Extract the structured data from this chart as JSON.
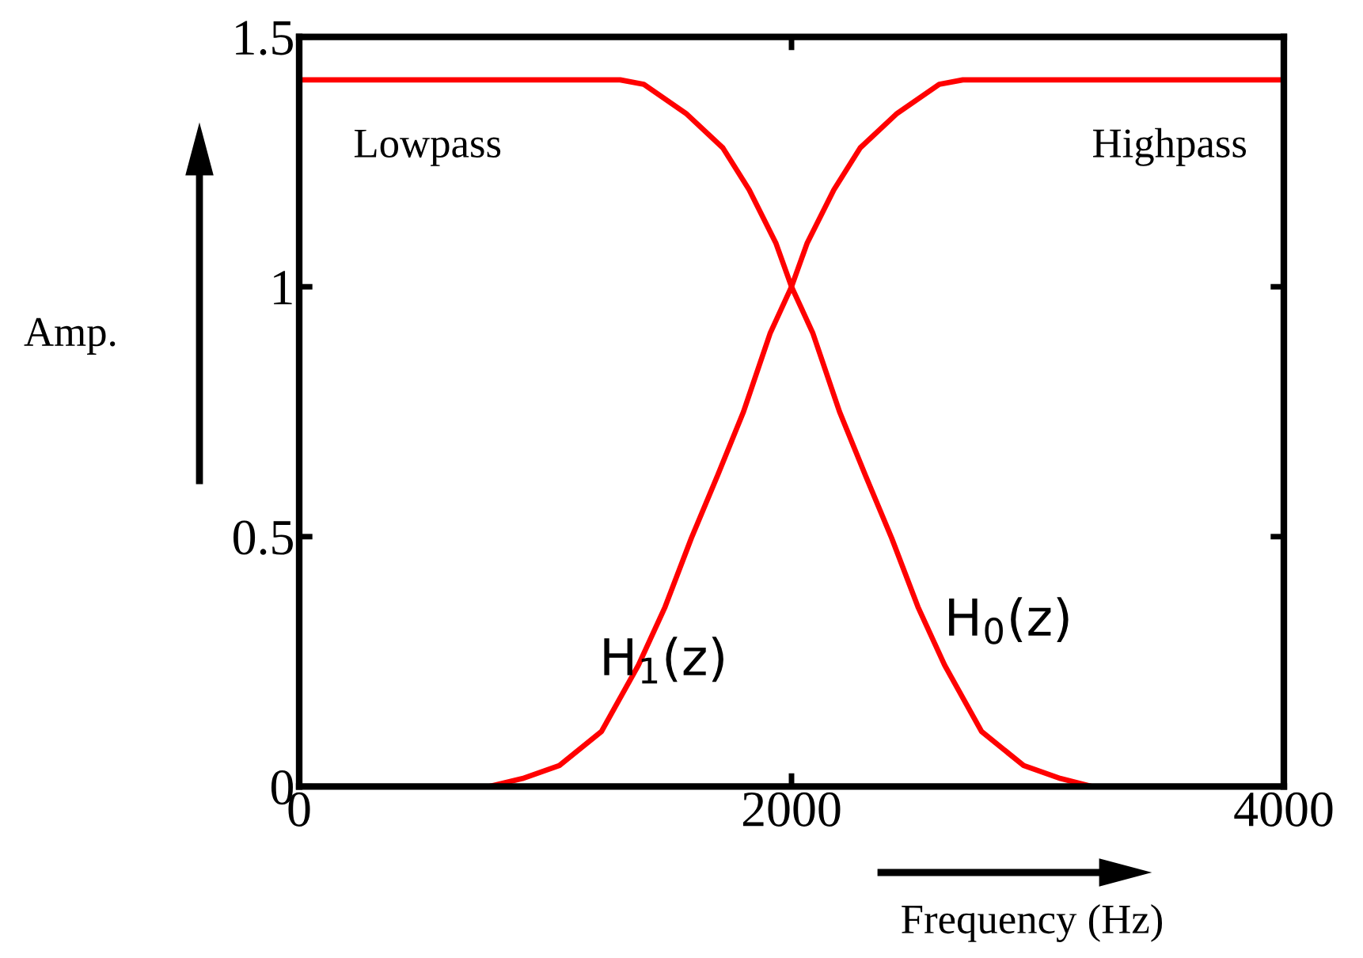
{
  "chart_data": {
    "type": "line",
    "xlabel": "Frequency (Hz)",
    "ylabel": "Amp.",
    "xlim": [
      0,
      4000
    ],
    "xticks": [
      0,
      2000,
      4000
    ],
    "ylim": [
      0,
      1.5
    ],
    "yticks": [
      0,
      0.5,
      1,
      1.5
    ],
    "grid": false,
    "series": [
      {
        "color": "#ff0000",
        "x": [
          0,
          1304,
          1400,
          1571,
          1721,
          1828,
          1936,
          2000,
          2086,
          2195,
          2300,
          2407,
          2514,
          2622,
          2772,
          2943,
          3093,
          3222,
          4000
        ],
        "values": [
          1.414,
          1.414,
          1.405,
          1.347,
          1.278,
          1.194,
          1.088,
          1.0,
          0.908,
          0.75,
          0.623,
          0.497,
          0.359,
          0.243,
          0.11,
          0.042,
          0.016,
          0,
          0
        ]
      },
      {
        "color": "#ff0000",
        "x": [
          0,
          770,
          907,
          1057,
          1228,
          1378,
          1486,
          1593,
          1700,
          1805,
          1914,
          2000,
          2064,
          2172,
          2279,
          2429,
          2600,
          2696,
          4000
        ],
        "values": [
          0,
          0,
          0.016,
          0.042,
          0.11,
          0.243,
          0.359,
          0.497,
          0.623,
          0.75,
          0.908,
          1.0,
          1.088,
          1.194,
          1.278,
          1.347,
          1.405,
          1.414,
          1.414
        ]
      }
    ],
    "annotations": [
      "Lowpass",
      "Highpass",
      "H$_{1}$(z)",
      "H$_{0}$(z)"
    ]
  }
}
